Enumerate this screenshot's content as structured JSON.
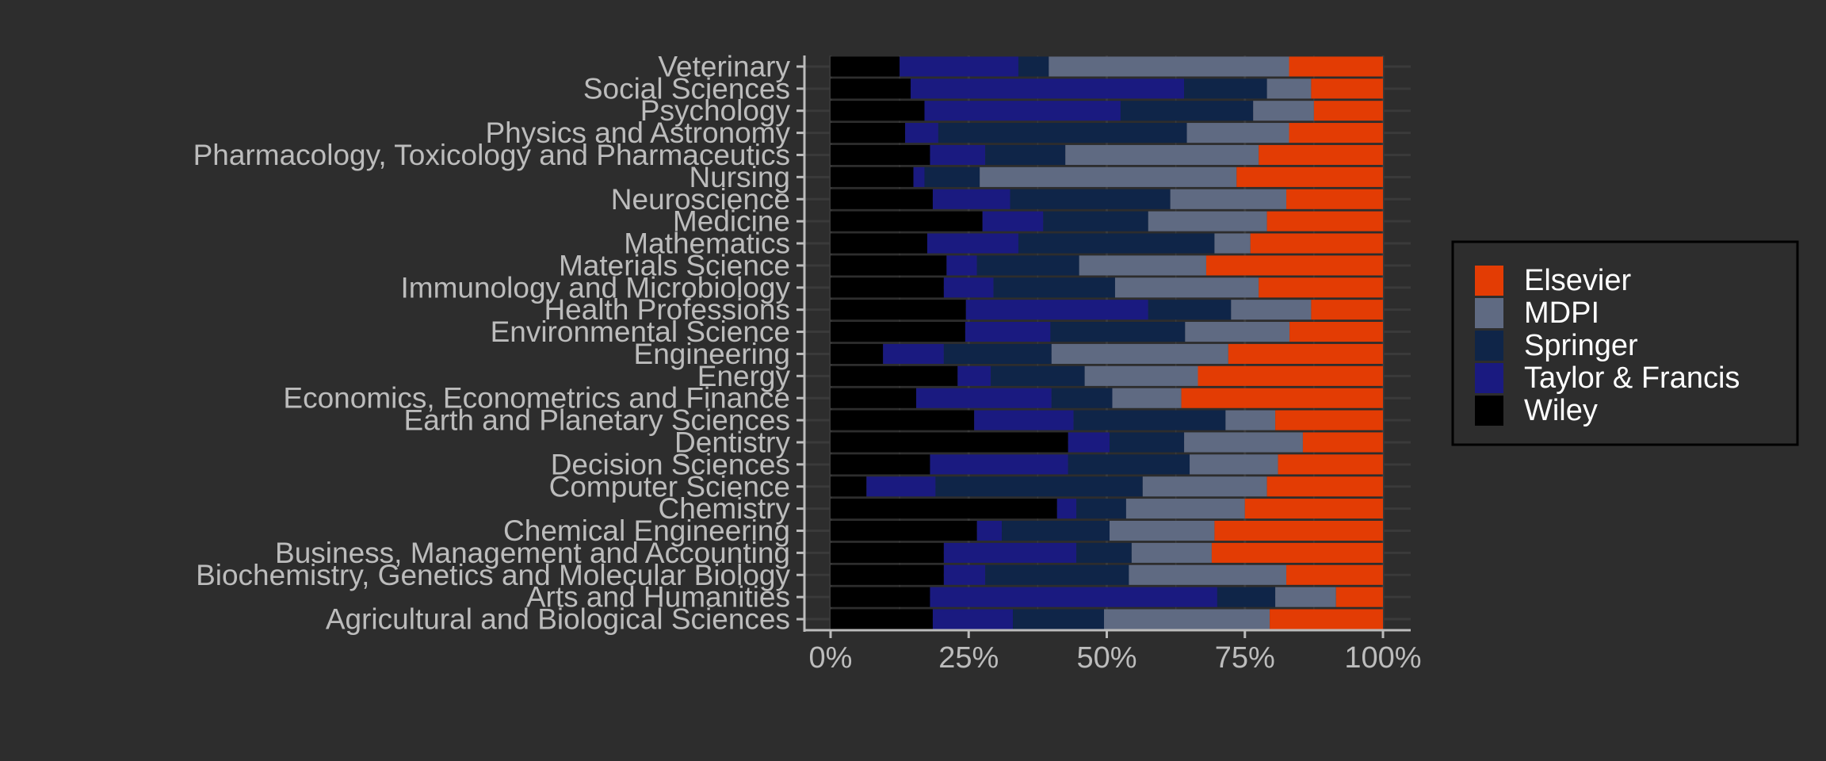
{
  "chart_data": {
    "type": "bar",
    "orientation": "horizontal",
    "stacked": "percent",
    "categories": [
      "Veterinary",
      "Social Sciences",
      "Psychology",
      "Physics and Astronomy",
      "Pharmacology, Toxicology and Pharmaceutics",
      "Nursing",
      "Neuroscience",
      "Medicine",
      "Mathematics",
      "Materials Science",
      "Immunology and Microbiology",
      "Health Professions",
      "Environmental Science",
      "Engineering",
      "Energy",
      "Economics, Econometrics and Finance",
      "Earth and Planetary Sciences",
      "Dentistry",
      "Decision Sciences",
      "Computer Science",
      "Chemistry",
      "Chemical Engineering",
      "Business, Management and Accounting",
      "Biochemistry, Genetics and Molecular Biology",
      "Arts and Humanities",
      "Agricultural and Biological Sciences"
    ],
    "series": [
      {
        "name": "Wiley",
        "color": "#000000",
        "values": [
          12.5,
          14.5,
          17,
          13.5,
          18,
          15,
          18.5,
          27.5,
          17.5,
          21,
          20.5,
          24.5,
          24.5,
          9.5,
          23,
          15.5,
          26,
          43,
          18,
          6.5,
          41,
          26.5,
          20.5,
          20.5,
          18,
          18.5
        ]
      },
      {
        "name": "Taylor & Francis",
        "color": "#1a1a80",
        "values": [
          21.5,
          49.5,
          35.5,
          6,
          10,
          2,
          14,
          11,
          16.5,
          5.5,
          9,
          33,
          15.5,
          11,
          6,
          24.5,
          18,
          7.5,
          25,
          12.5,
          3.5,
          4.5,
          24,
          7.5,
          52,
          14.5
        ]
      },
      {
        "name": "Springer",
        "color": "#0f2548",
        "values": [
          5.5,
          15,
          24,
          45,
          14.5,
          10,
          29,
          19,
          35.5,
          18.5,
          22,
          15,
          24.5,
          19.5,
          17,
          11,
          27.5,
          13.5,
          22,
          37.5,
          9,
          19.5,
          10,
          26,
          10.5,
          16.5
        ]
      },
      {
        "name": "MDPI",
        "color": "#5f6a82",
        "values": [
          43.5,
          8,
          11,
          18.5,
          35,
          46.5,
          21,
          21.5,
          6.5,
          23,
          26,
          14.5,
          19,
          32,
          20.5,
          12.5,
          9,
          21.5,
          16,
          22.5,
          21.5,
          19,
          14.5,
          28.5,
          11,
          30
        ]
      },
      {
        "name": "Elsevier",
        "color": "#e33c04",
        "values": [
          17,
          13,
          12.5,
          17,
          22.5,
          26.5,
          17.5,
          21,
          24,
          32,
          22.5,
          13,
          17,
          28,
          33.5,
          36.5,
          19.5,
          14.5,
          19,
          21,
          25,
          30.5,
          31,
          17.5,
          8.5,
          20.5
        ]
      }
    ],
    "legend_order": [
      "Elsevier",
      "MDPI",
      "Springer",
      "Taylor & Francis",
      "Wiley"
    ],
    "x_ticks": [
      "0%",
      "25%",
      "50%",
      "75%",
      "100%"
    ],
    "xlim": [
      0,
      100
    ],
    "xlabel": "",
    "ylabel": "",
    "title": "",
    "legend_position": "right",
    "grid": true,
    "theme": "dark"
  },
  "colors": {
    "background": "#2d2d2d",
    "panel": "#2d2d2d",
    "gridline": "#3a3a3a",
    "axis": "#bcbcbc",
    "legend_border": "#000000"
  }
}
